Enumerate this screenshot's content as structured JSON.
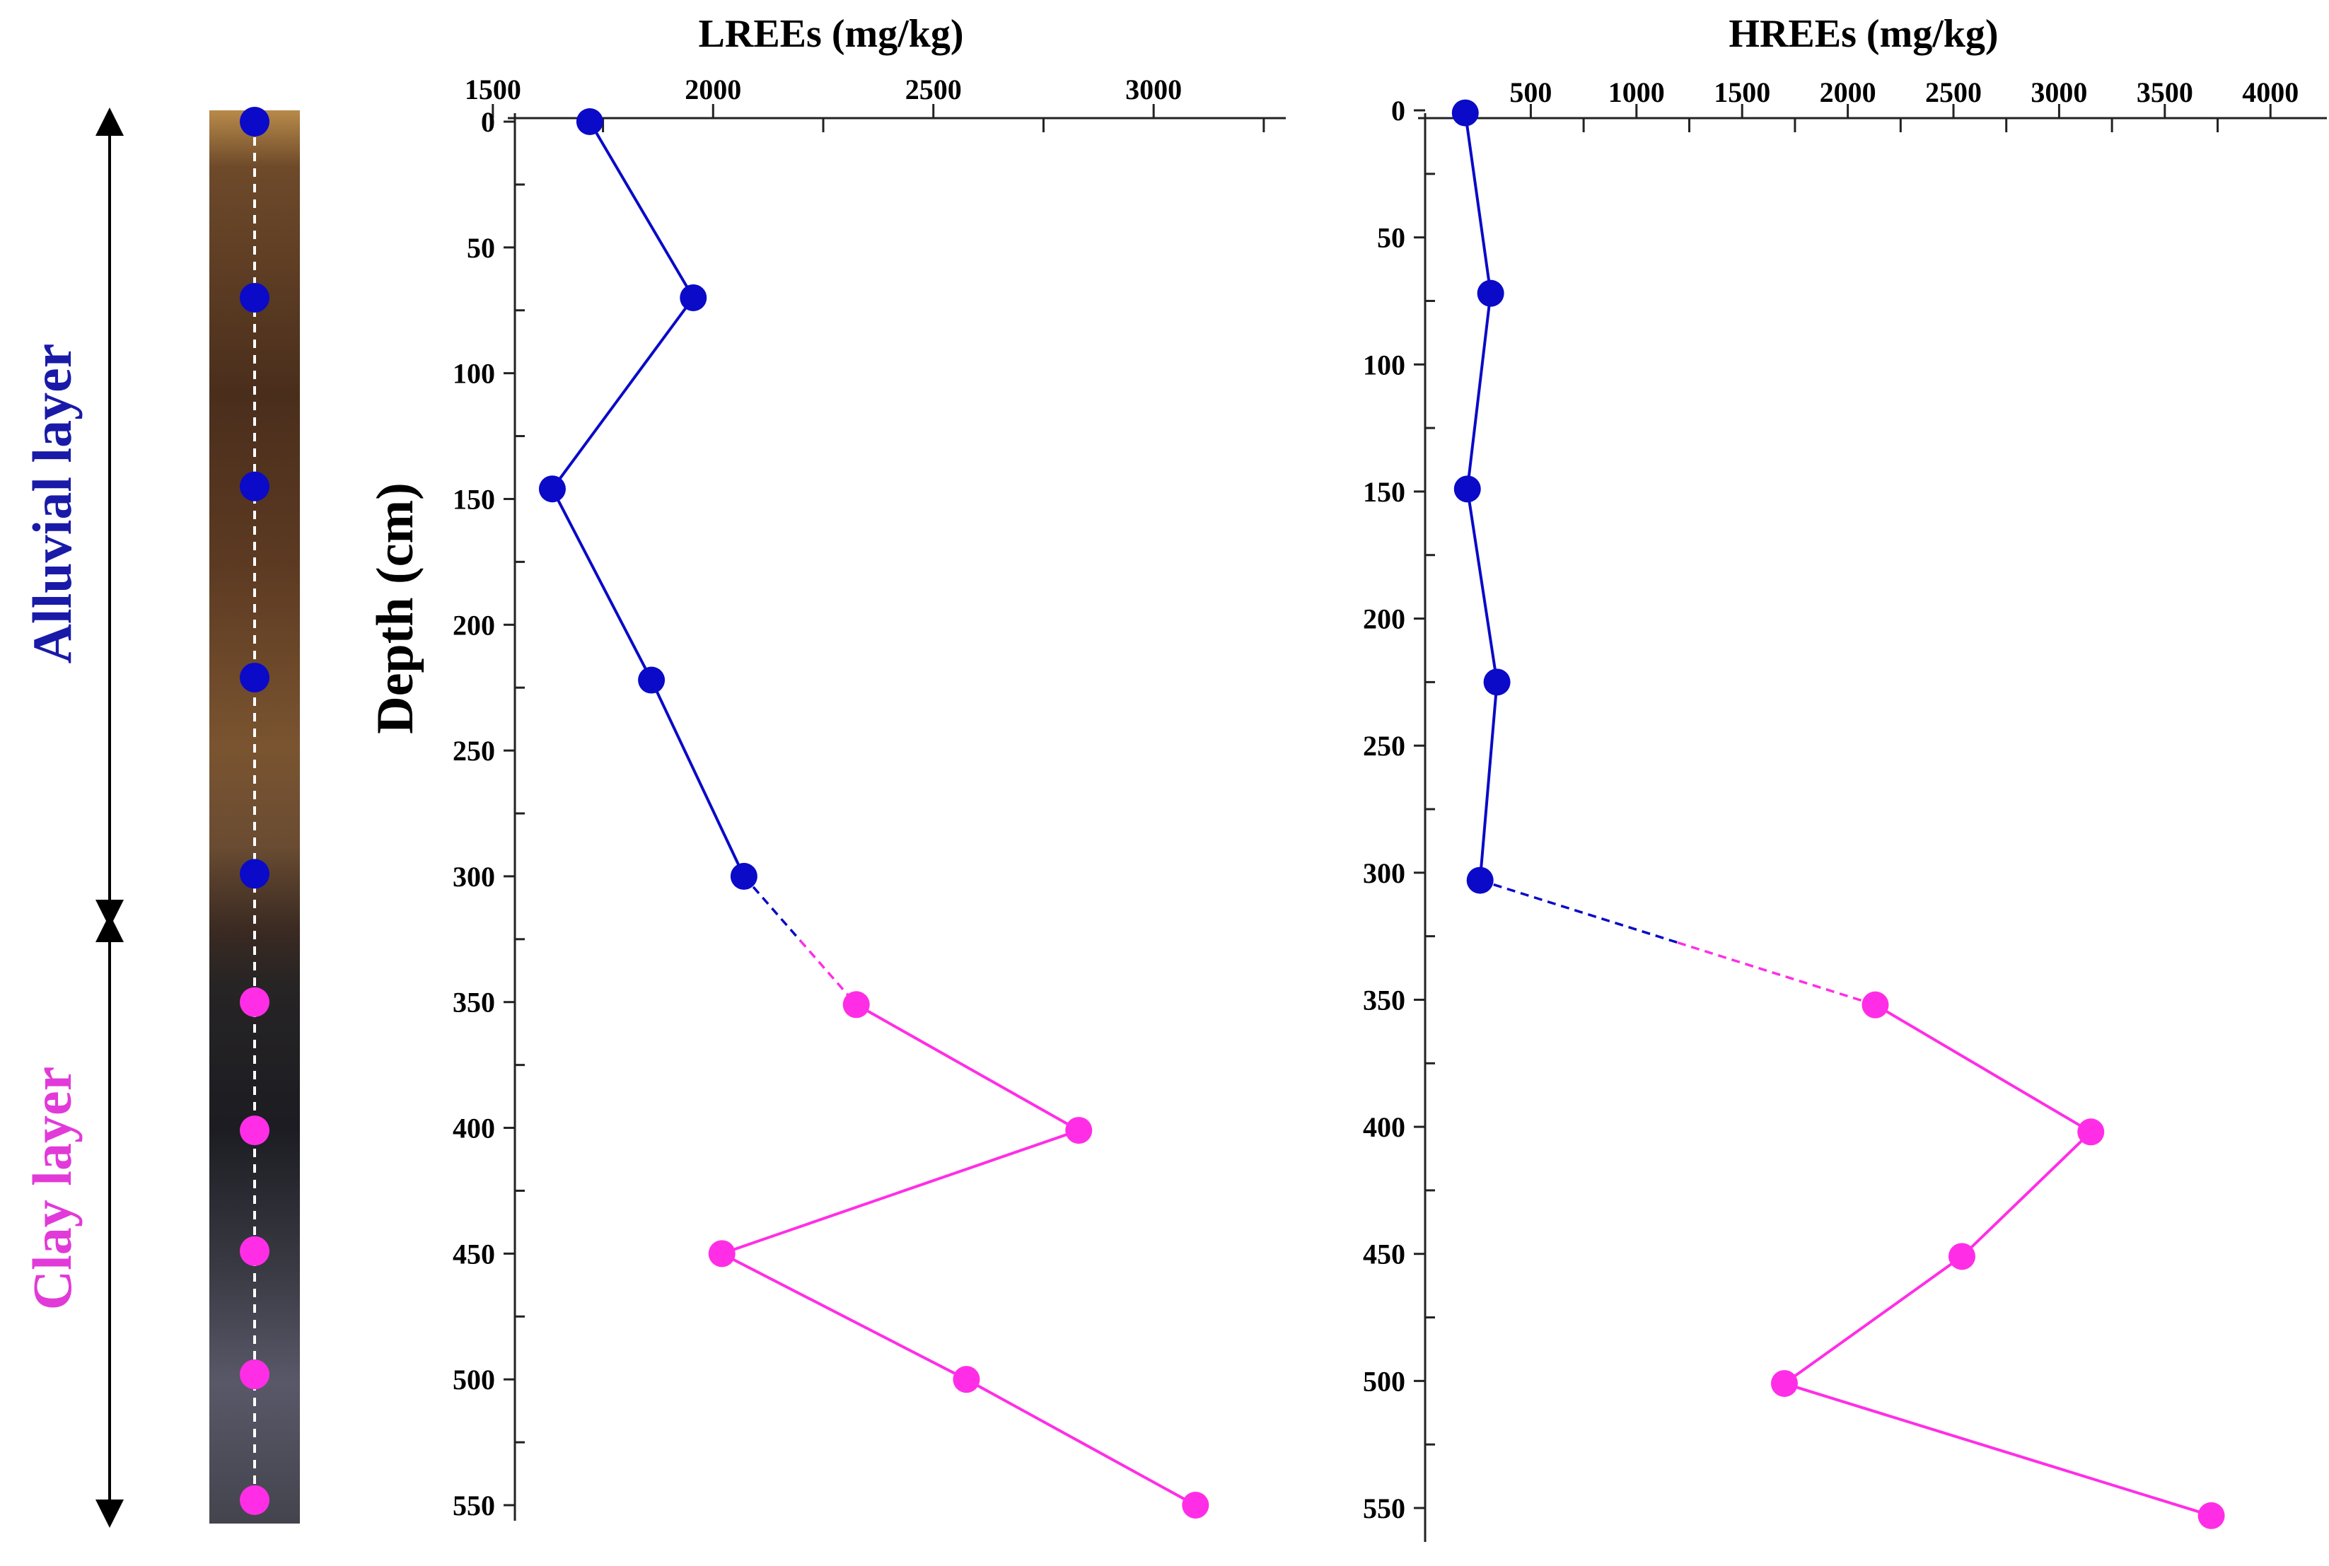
{
  "colors": {
    "alluvial": "#0a0ac8",
    "clay": "#ff2ee6",
    "axis": "#222222"
  },
  "core": {
    "layers": [
      {
        "name": "Alluvial layer",
        "color": "#1a1aa8"
      },
      {
        "name": "Clay layer",
        "color": "#e23ad8"
      }
    ],
    "sample_depths": [
      0,
      70,
      145,
      221,
      299,
      350,
      401,
      449,
      498,
      548
    ]
  },
  "chart_data": [
    {
      "type": "line",
      "title": "LREEs (mg/kg)",
      "ylabel": "Depth (cm)",
      "xlim": [
        1550,
        3300
      ],
      "ylim": [
        0,
        555
      ],
      "y_inverted": true,
      "x_axis_position": "top",
      "xticks": [
        1500,
        2000,
        2500,
        3000
      ],
      "xtick_labels": [
        "1500",
        "2000",
        "2500",
        "3000"
      ],
      "yticks": [
        0,
        50,
        100,
        150,
        200,
        250,
        300,
        350,
        400,
        450,
        500,
        550
      ],
      "ytick_labels": [
        "0",
        "50",
        "100",
        "150",
        "200",
        "250",
        "300",
        "350",
        "400",
        "450",
        "500",
        "550"
      ],
      "series": [
        {
          "layer": "alluvial",
          "color": "#0a0ac8",
          "points": [
            {
              "x": 1720,
              "y": 0
            },
            {
              "x": 1955,
              "y": 70
            },
            {
              "x": 1635,
              "y": 146
            },
            {
              "x": 1860,
              "y": 222
            },
            {
              "x": 2070,
              "y": 300
            }
          ]
        },
        {
          "layer": "clay",
          "color": "#ff2ee6",
          "points": [
            {
              "x": 2325,
              "y": 351
            },
            {
              "x": 2830,
              "y": 401
            },
            {
              "x": 2020,
              "y": 450
            },
            {
              "x": 2575,
              "y": 500
            },
            {
              "x": 3095,
              "y": 550
            }
          ]
        }
      ]
    },
    {
      "type": "line",
      "title": "HREEs (mg/kg)",
      "ylabel": "",
      "xlim": [
        0,
        4200
      ],
      "ylim": [
        0,
        555
      ],
      "y_inverted": true,
      "x_axis_position": "top",
      "xticks": [
        500,
        1000,
        1500,
        2000,
        2500,
        3000,
        3500,
        4000
      ],
      "xtick_labels": [
        "500",
        "1000",
        "1500",
        "2000",
        "2500",
        "3000",
        "3500",
        "4000"
      ],
      "yticks": [
        0,
        50,
        100,
        150,
        200,
        250,
        300,
        350,
        400,
        450,
        500,
        550
      ],
      "ytick_labels": [
        "0",
        "50",
        "100",
        "150",
        "200",
        "250",
        "300",
        "350",
        "400",
        "450",
        "500",
        "550"
      ],
      "series": [
        {
          "layer": "alluvial",
          "color": "#0a0ac8",
          "points": [
            {
              "x": 190,
              "y": 1
            },
            {
              "x": 310,
              "y": 72
            },
            {
              "x": 200,
              "y": 149
            },
            {
              "x": 340,
              "y": 225
            },
            {
              "x": 260,
              "y": 303
            }
          ]
        },
        {
          "layer": "clay",
          "color": "#ff2ee6",
          "points": [
            {
              "x": 2130,
              "y": 352
            },
            {
              "x": 3150,
              "y": 402
            },
            {
              "x": 2540,
              "y": 451
            },
            {
              "x": 1700,
              "y": 501
            },
            {
              "x": 3720,
              "y": 553
            }
          ]
        }
      ]
    }
  ]
}
